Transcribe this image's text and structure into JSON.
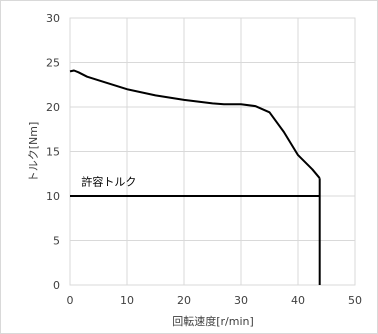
{
  "chart_data": {
    "type": "line",
    "xlabel": "回転速度[r/min]",
    "ylabel": "トルク[Nm]",
    "xlim": [
      0,
      50
    ],
    "ylim": [
      0,
      30
    ],
    "x_ticks": [
      "0",
      "10",
      "20",
      "30",
      "40",
      "50"
    ],
    "y_ticks": [
      "0",
      "5",
      "10",
      "15",
      "20",
      "25",
      "30"
    ],
    "grid": true,
    "legend": "none",
    "annotations": [
      {
        "text": "許容トルク",
        "x": 2,
        "y": 11.2
      }
    ],
    "series": [
      {
        "x": [
          0,
          0.7,
          1.5,
          3,
          6,
          10,
          15,
          20,
          25,
          27,
          30,
          32.5,
          35,
          37.5,
          40,
          42.5,
          43.8
        ],
        "y": [
          24,
          24.1,
          23.9,
          23.4,
          22.8,
          22.0,
          21.3,
          20.8,
          20.4,
          20.3,
          20.3,
          20.1,
          19.4,
          17.2,
          14.6,
          13.0,
          12.0
        ],
        "color": "#000000"
      },
      {
        "x": [
          0,
          43.8
        ],
        "y": [
          10,
          10
        ],
        "color": "#000000"
      },
      {
        "x": [
          43.8,
          43.8
        ],
        "y": [
          12,
          0
        ],
        "color": "#000000"
      }
    ]
  }
}
